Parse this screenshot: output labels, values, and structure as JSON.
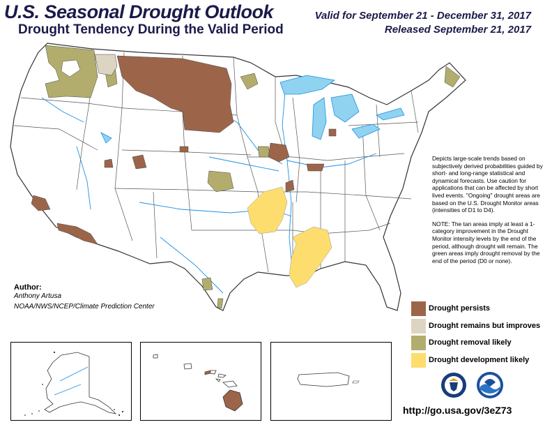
{
  "header": {
    "title": "U.S. Seasonal Drought Outlook",
    "subtitle": "Drought Tendency During the Valid Period",
    "valid": "Valid for September 21 - December 31, 2017",
    "released": "Released September 21, 2017"
  },
  "notes": {
    "paragraph1": "Depicts large-scale trends based on subjectively derived probabilities guided by short- and long-range statistical and dynamical forecasts. Use caution for applications that can be affected by short lived events. \"Ongoing\" drought areas are based on the U.S. Drought Monitor areas (intensities of D1 to D4).",
    "paragraph2": "NOTE: The tan areas imply at least a 1-category improvement in the Drought Monitor intensity levels by the end of the period, although drought will remain. The green areas imply drought removal by the end of the period (D0 or none)."
  },
  "author": {
    "label": "Author:",
    "name": "Anthony Artusa",
    "org": "NOAA/NWS/NCEP/Climate Prediction Center"
  },
  "legend": [
    {
      "label": "Drought persists",
      "color": "#9c6549"
    },
    {
      "label": "Drought remains but improves",
      "color": "#ddd5c2"
    },
    {
      "label": "Drought removal likely",
      "color": "#b3ad6d"
    },
    {
      "label": "Drought development likely",
      "color": "#fddd6e"
    }
  ],
  "colors": {
    "water": "#8fd3f0",
    "rivers": "#1e8fe6",
    "borders": "#333333"
  },
  "footer": {
    "url": "http://go.usa.gov/3eZ73"
  },
  "logos": [
    {
      "name": "doc-seal-icon"
    },
    {
      "name": "noaa-logo-icon"
    }
  ]
}
